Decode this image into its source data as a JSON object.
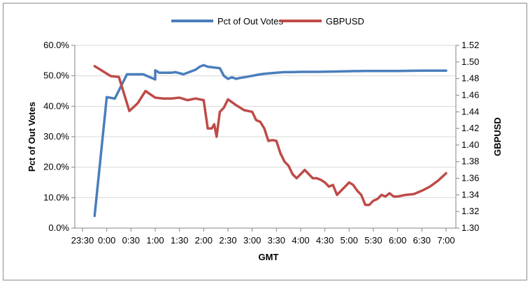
{
  "chart_data": {
    "type": "line",
    "title": "",
    "legend": {
      "position": "top",
      "entries": [
        "Pct of Out Votes",
        "GBPUSD"
      ]
    },
    "colors": {
      "Pct of Out Votes": "#4a7ebb",
      "GBPUSD": "#be4b48",
      "grid": "#d9d9d9",
      "axis": "#868686"
    },
    "xlabel": "GMT",
    "ylabel": "Pct of Out Votes",
    "y2label": "GBPUSD",
    "x_ticks": [
      "23:30",
      "0:00",
      "0:30",
      "1:00",
      "1:30",
      "2:00",
      "2:30",
      "3:00",
      "3:30",
      "4:00",
      "4:30",
      "5:00",
      "5:30",
      "6:00",
      "6:30",
      "7:00"
    ],
    "ylim": [
      0,
      0.6
    ],
    "y_ticks": [
      "0.0%",
      "10.0%",
      "20.0%",
      "30.0%",
      "40.0%",
      "50.0%",
      "60.0%"
    ],
    "y2lim": [
      1.3,
      1.52
    ],
    "y2_ticks": [
      "1.30",
      "1.32",
      "1.34",
      "1.36",
      "1.38",
      "1.40",
      "1.42",
      "1.44",
      "1.46",
      "1.48",
      "1.50",
      "1.52"
    ],
    "grid": true,
    "series": [
      {
        "name": "Pct of Out Votes",
        "axis": "left",
        "x": [
          "23:45",
          "0:00",
          "0:10",
          "0:25",
          "0:45",
          "1:00",
          "1:00",
          "1:05",
          "1:20",
          "1:25",
          "1:35",
          "1:40",
          "1:50",
          "1:55",
          "2:00",
          "2:05",
          "2:10",
          "2:20",
          "2:25",
          "2:30",
          "2:35",
          "2:40",
          "2:45",
          "2:50",
          "3:00",
          "3:10",
          "3:20",
          "3:30",
          "3:40",
          "3:50",
          "4:00",
          "4:20",
          "4:40",
          "5:00",
          "5:20",
          "5:40",
          "6:00",
          "6:30",
          "7:00"
        ],
        "values": [
          0.04,
          0.43,
          0.425,
          0.505,
          0.505,
          0.488,
          0.518,
          0.51,
          0.51,
          0.512,
          0.505,
          0.51,
          0.52,
          0.53,
          0.535,
          0.53,
          0.528,
          0.525,
          0.5,
          0.49,
          0.495,
          0.49,
          0.493,
          0.495,
          0.5,
          0.505,
          0.508,
          0.51,
          0.512,
          0.512,
          0.513,
          0.513,
          0.514,
          0.515,
          0.516,
          0.516,
          0.516,
          0.517,
          0.517
        ]
      },
      {
        "name": "GBPUSD",
        "axis": "right",
        "x": [
          "23:45",
          "0:05",
          "0:15",
          "0:28",
          "0:38",
          "0:48",
          "1:00",
          "1:10",
          "1:20",
          "1:30",
          "1:40",
          "1:50",
          "2:00",
          "2:05",
          "2:10",
          "2:13",
          "2:16",
          "2:20",
          "2:25",
          "2:30",
          "2:40",
          "2:50",
          "3:00",
          "3:05",
          "3:10",
          "3:15",
          "3:20",
          "3:25",
          "3:30",
          "3:35",
          "3:40",
          "3:45",
          "3:50",
          "3:55",
          "4:00",
          "4:05",
          "4:10",
          "4:15",
          "4:20",
          "4:25",
          "4:30",
          "4:35",
          "4:40",
          "4:45",
          "4:50",
          "4:55",
          "5:00",
          "5:05",
          "5:10",
          "5:15",
          "5:20",
          "5:25",
          "5:30",
          "5:35",
          "5:40",
          "5:45",
          "5:50",
          "5:55",
          "6:00",
          "6:10",
          "6:20",
          "6:30",
          "6:40",
          "6:50",
          "7:00"
        ],
        "values": [
          1.495,
          1.483,
          1.482,
          1.441,
          1.45,
          1.465,
          1.457,
          1.456,
          1.456,
          1.457,
          1.454,
          1.456,
          1.454,
          1.42,
          1.42,
          1.425,
          1.41,
          1.44,
          1.445,
          1.455,
          1.448,
          1.442,
          1.44,
          1.43,
          1.428,
          1.42,
          1.405,
          1.406,
          1.405,
          1.39,
          1.38,
          1.375,
          1.365,
          1.36,
          1.365,
          1.37,
          1.365,
          1.36,
          1.36,
          1.358,
          1.355,
          1.35,
          1.352,
          1.34,
          1.345,
          1.35,
          1.355,
          1.352,
          1.345,
          1.34,
          1.328,
          1.328,
          1.333,
          1.335,
          1.34,
          1.338,
          1.342,
          1.338,
          1.338,
          1.34,
          1.341,
          1.345,
          1.35,
          1.357,
          1.366
        ]
      }
    ]
  }
}
